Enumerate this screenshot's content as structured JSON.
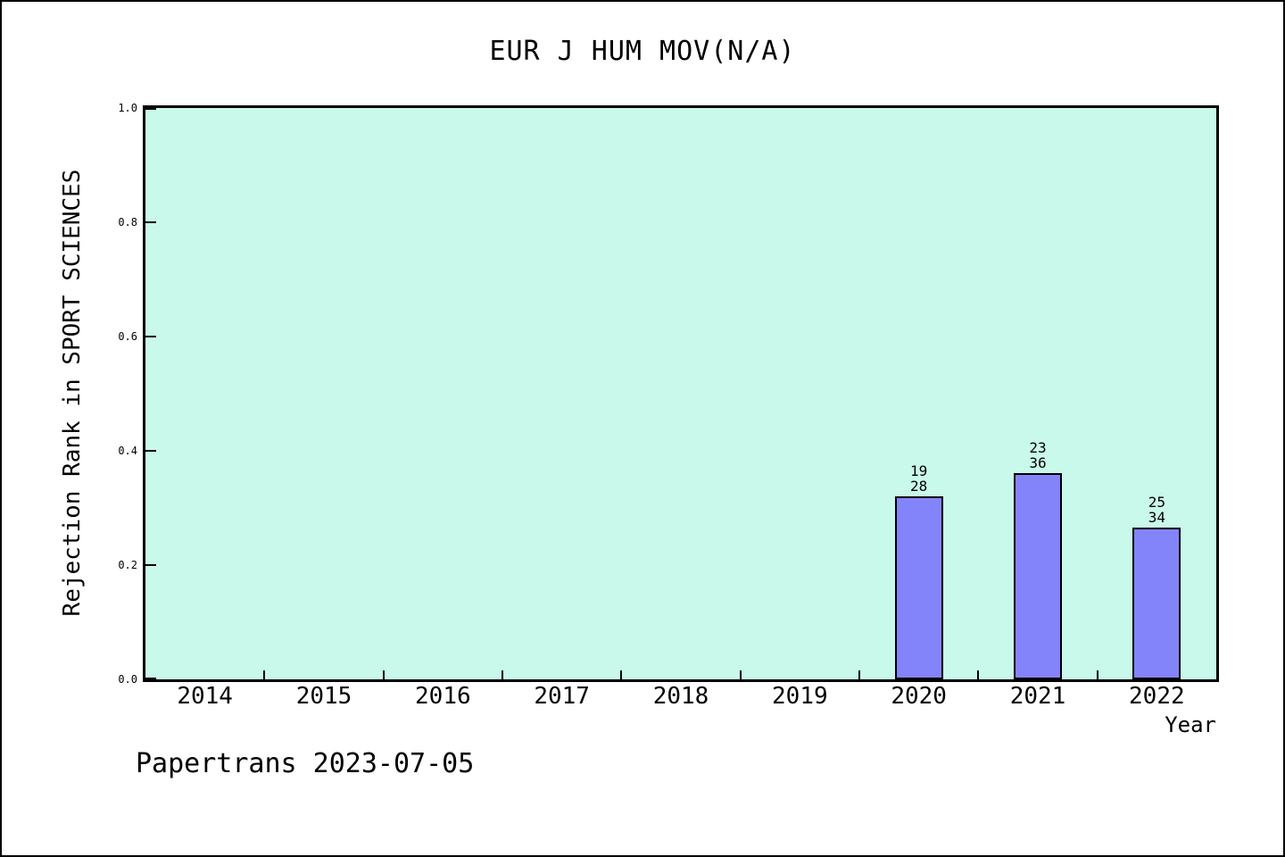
{
  "page": {
    "background": "#ffffff",
    "border_color": "#000000",
    "footer": "Papertrans 2023-07-05"
  },
  "chart_data": {
    "type": "bar",
    "title": "EUR J HUM MOV(N/A)",
    "xlabel": "Year",
    "ylabel": "Rejection Rank in SPORT SCIENCES",
    "categories": [
      "2014",
      "2015",
      "2016",
      "2017",
      "2018",
      "2019",
      "2020",
      "2021",
      "2022"
    ],
    "yticks": [
      "0.0",
      "0.2",
      "0.4",
      "0.6",
      "0.8",
      "1.0"
    ],
    "ylim": [
      0.0,
      1.0
    ],
    "grid": false,
    "legend": false,
    "plot_bg": "#c9f9ea",
    "bar_fill": "#8484fa",
    "bar_edge": "#000000",
    "frame_color": "#000000",
    "bars": [
      {
        "category": "2020",
        "label_top": "19",
        "label_bottom": "28",
        "value": 0.321
      },
      {
        "category": "2021",
        "label_top": "23",
        "label_bottom": "36",
        "value": 0.361
      },
      {
        "category": "2022",
        "label_top": "25",
        "label_bottom": "34",
        "value": 0.265
      }
    ]
  }
}
